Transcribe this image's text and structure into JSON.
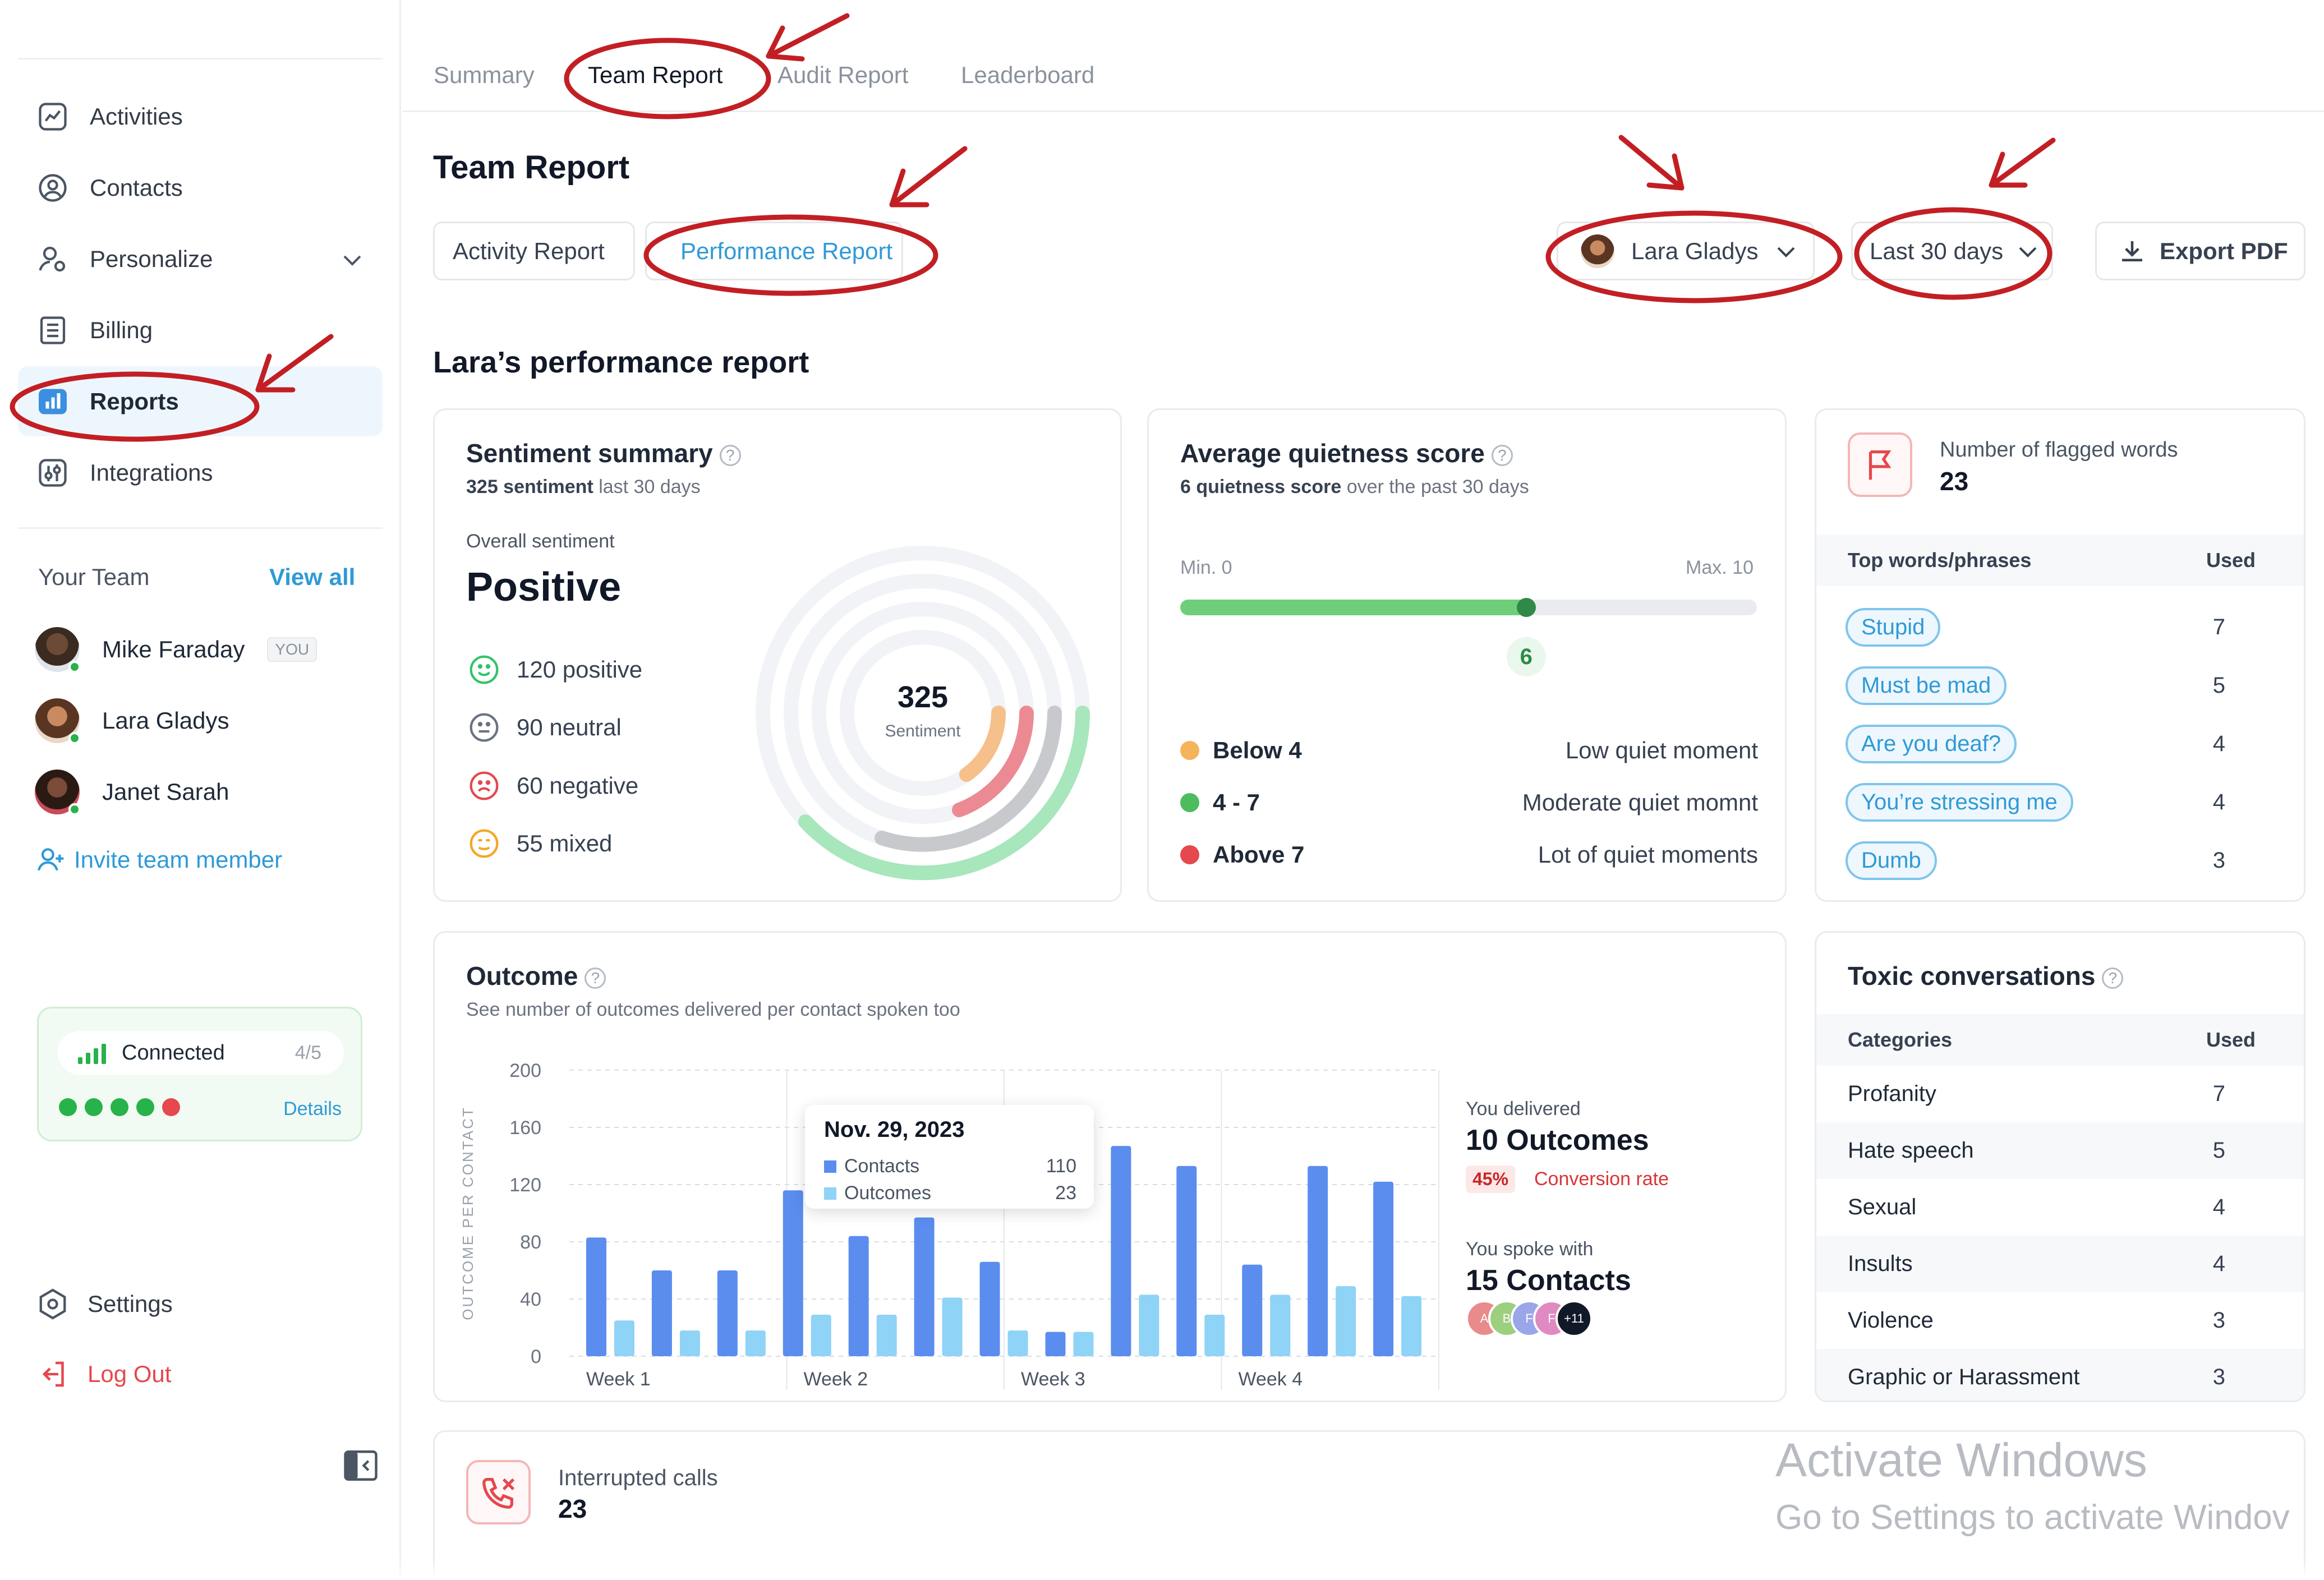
{
  "sidebar": {
    "nav": [
      {
        "label": "Activities",
        "icon": "activity-chart-icon"
      },
      {
        "label": "Contacts",
        "icon": "user-circle-icon"
      },
      {
        "label": "Personalize",
        "icon": "personalize-icon"
      },
      {
        "label": "Billing",
        "icon": "billing-list-icon"
      },
      {
        "label": "Reports",
        "icon": "reports-bar-icon"
      },
      {
        "label": "Integrations",
        "icon": "integrations-icon"
      }
    ],
    "team": {
      "heading": "Your Team",
      "view_all": "View all",
      "members": [
        {
          "name": "Mike Faraday",
          "badge": "YOU"
        },
        {
          "name": "Lara Gladys"
        },
        {
          "name": "Janet Sarah"
        }
      ],
      "invite_label": "Invite team member"
    },
    "connection": {
      "label": "Connected",
      "count": "4/5",
      "details_label": "Details",
      "accent": "#27b24a",
      "error": "#e5484d"
    },
    "settings_label": "Settings",
    "logout_label": "Log Out"
  },
  "tabs": [
    "Summary",
    "Team Report",
    "Audit Report",
    "Leaderboard"
  ],
  "header": {
    "title": "Team Report",
    "subtabs": [
      "Activity Report",
      "Performance Report"
    ],
    "member_select": "Lara Gladys",
    "period_select": "Last 30 days",
    "export_label": "Export PDF"
  },
  "report_title": "Lara’s performance report",
  "sentiment": {
    "title": "Sentiment summary",
    "sub_bold": "325 sentiment",
    "sub_rest": " last 30 days",
    "overall_label": "Overall sentiment",
    "overall_value": "Positive",
    "rows": [
      {
        "text": "120 positive",
        "color": "#34c26b"
      },
      {
        "text": "90 neutral",
        "color": "#6b7280"
      },
      {
        "text": "60 negative",
        "color": "#e5484d"
      },
      {
        "text": "55 mixed",
        "color": "#f5a623"
      }
    ],
    "center_value": "325",
    "center_label": "Sentiment"
  },
  "quietness": {
    "title": "Average quietness score",
    "sub_bold": "6 quietness score",
    "sub_rest": " over the past 30 days",
    "min_label": "Min. 0",
    "max_label": "Max. 10",
    "value": 6,
    "value_text": "6",
    "legend": [
      {
        "range": "Below 4",
        "desc": "Low quiet moment",
        "color": "#f5b45a"
      },
      {
        "range": "4 - 7",
        "desc": "Moderate quiet momnt",
        "color": "#4cbc5f"
      },
      {
        "range": "Above 7",
        "desc": "Lot of quiet moments",
        "color": "#e5484d"
      }
    ]
  },
  "flagged": {
    "title": "Number of flagged words",
    "count": "23",
    "col1": "Top words/phrases",
    "col2": "Used",
    "rows": [
      {
        "word": "Stupid",
        "used": "7"
      },
      {
        "word": "Must be mad",
        "used": "5"
      },
      {
        "word": "Are you deaf?",
        "used": "4"
      },
      {
        "word": "You’re stressing me",
        "used": "4"
      },
      {
        "word": "Dumb",
        "used": "3"
      }
    ]
  },
  "outcome": {
    "title": "Outcome",
    "subtitle": "See number of outcomes delivered per contact spoken too",
    "delivered_label": "You delivered",
    "delivered_value": "10 Outcomes",
    "conversion_pct": "45%",
    "conversion_label": "Conversion rate",
    "spoke_label": "You spoke with",
    "spoke_value": "15 Contacts",
    "avatars": [
      "A",
      "B",
      "F",
      "F",
      "+11"
    ],
    "tooltip": {
      "date": "Nov. 29, 2023",
      "rows": [
        {
          "name": "Contacts",
          "value": "110"
        },
        {
          "name": "Outcomes",
          "value": "23"
        }
      ]
    }
  },
  "chart_data": {
    "type": "bar",
    "ylabel": "OUTCOME PER CONTACT",
    "ylim": [
      0,
      200
    ],
    "yticks": [
      "0",
      "40",
      "80",
      "120",
      "160",
      "200"
    ],
    "week_labels": [
      "Week 1",
      "Week 2",
      "Week 3",
      "Week 4"
    ],
    "grid": true,
    "series": [
      {
        "name": "Contacts",
        "color": "#5b8def",
        "values": [
          83,
          60,
          60,
          116,
          84,
          97,
          66,
          17,
          147,
          133,
          64,
          133,
          122
        ]
      },
      {
        "name": "Outcomes",
        "color": "#8fd3f7",
        "values": [
          25,
          18,
          18,
          29,
          29,
          41,
          18,
          17,
          43,
          29,
          43,
          49,
          42
        ]
      }
    ]
  },
  "toxic": {
    "title": "Toxic conversations",
    "col1": "Categories",
    "col2": "Used",
    "rows": [
      {
        "name": "Profanity",
        "used": "7"
      },
      {
        "name": "Hate speech",
        "used": "5"
      },
      {
        "name": "Sexual",
        "used": "4"
      },
      {
        "name": "Insults",
        "used": "4"
      },
      {
        "name": "Violence",
        "used": "3"
      },
      {
        "name": "Graphic or Harassment",
        "used": "3"
      }
    ]
  },
  "interrupted": {
    "title": "Interrupted calls",
    "count": "23"
  },
  "watermark": {
    "line1": "Activate Windows",
    "line2": "Go to Settings to activate Windov"
  },
  "colors": {
    "accent": "#2f9ad6",
    "annotation": "#c21f24"
  }
}
